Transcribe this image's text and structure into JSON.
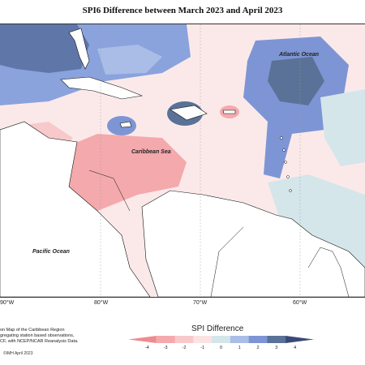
{
  "title": "SPI6 Difference between March 2023 and April 2023",
  "labels": {
    "atlantic": "Atlantic Ocean",
    "caribbean": "Caribbean Sea",
    "pacific": "Pacific Ocean"
  },
  "longitudes": [
    "90°W",
    "80°W",
    "70°W",
    "60°W"
  ],
  "credits": [
    "on Map of the Caribbean Region",
    "gregating station based observations,",
    "CF, with NCEP/NCAR Reanalysis Data."
  ],
  "copyright": "©IMH April 2023",
  "legend": {
    "title": "SPI Difference",
    "ticks": [
      "-4",
      "-3",
      "-2",
      "-1",
      "0",
      "1",
      "2",
      "3",
      "4"
    ],
    "colors": [
      "#f08a8f",
      "#f4a9ad",
      "#f8c9cb",
      "#fbe2e3",
      "#d4e6ea",
      "#a9bde6",
      "#7d95d4",
      "#5a7297",
      "#3a4878"
    ]
  }
}
